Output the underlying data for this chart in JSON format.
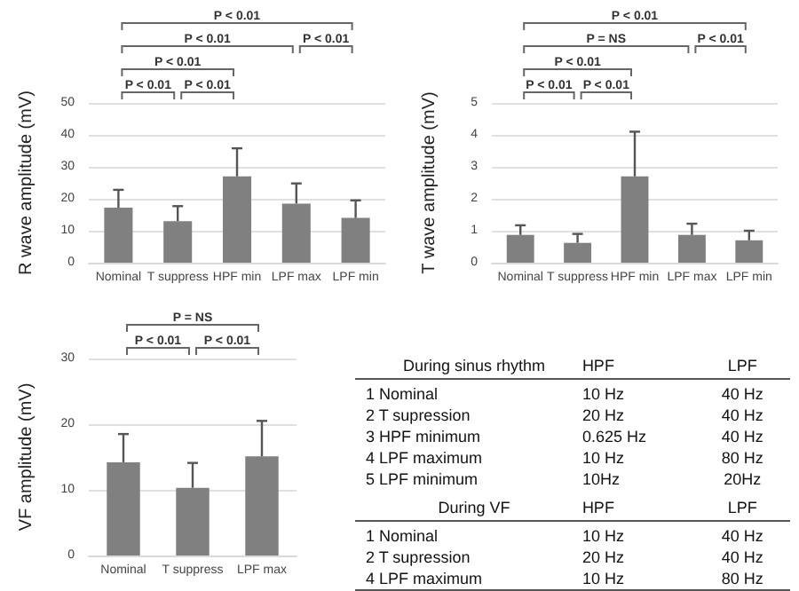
{
  "chart_data": [
    {
      "type": "bar",
      "ylabel": "R wave amplitude (mV)",
      "categories": [
        "Nominal",
        "T suppress",
        "HPF min",
        "LPF max",
        "LPF min"
      ],
      "values": [
        17.2,
        13,
        27,
        18.5,
        14
      ],
      "errors": [
        [
          17.2,
          22.8
        ],
        [
          13,
          17.7
        ],
        [
          27,
          35.8
        ],
        [
          18.5,
          24.8
        ],
        [
          14,
          19.5
        ]
      ],
      "color": "#808080",
      "ylim": [
        0,
        50
      ],
      "yticks": [
        0,
        10,
        20,
        30,
        40,
        50
      ],
      "grid": "y",
      "annotations": [
        "P < 0.01",
        "P < 0.01",
        "P < 0.01",
        "P < 0.01",
        "P < 0.01",
        "P < 0.01"
      ]
    },
    {
      "type": "bar",
      "ylabel": "T wave amplitude (mV)",
      "categories": [
        "Nominal",
        "T suppress",
        "HPF min",
        "LPF max",
        "LPF min"
      ],
      "values": [
        0.87,
        0.62,
        2.7,
        0.87,
        0.7
      ],
      "errors": [
        [
          0.87,
          1.17
        ],
        [
          0.62,
          0.9
        ],
        [
          2.7,
          4.1
        ],
        [
          0.87,
          1.22
        ],
        [
          0.7,
          1.0
        ]
      ],
      "color": "#808080",
      "ylim": [
        0,
        5
      ],
      "yticks": [
        0,
        1,
        2,
        3,
        4,
        5
      ],
      "grid": "y",
      "annotations": [
        "P < 0.01",
        "P = NS",
        "P < 0.01",
        "P < 0.01",
        "P < 0.01",
        "P < 0.01"
      ]
    },
    {
      "type": "bar",
      "ylabel": "VF amplitude (mV)",
      "categories": [
        "Nominal",
        "T suppress",
        "LPF max"
      ],
      "values": [
        14.2,
        10.3,
        15.1
      ],
      "errors": [
        [
          14.2,
          18.5
        ],
        [
          10.3,
          14.1
        ],
        [
          15.1,
          20.5
        ]
      ],
      "color": "#808080",
      "ylim": [
        0,
        30
      ],
      "yticks": [
        0,
        10,
        20,
        30
      ],
      "grid": "y",
      "annotations": [
        "P = NS",
        "P < 0.01",
        "P < 0.01"
      ]
    },
    {
      "type": "other",
      "annotations": [
        "During sinus rhythm",
        "HPF",
        "LPF",
        "1  Nominal",
        "10 Hz",
        "40 Hz",
        "2  T supression",
        "20 Hz",
        "40 Hz",
        "3  HPF minimum",
        "0.625 Hz",
        "40 Hz",
        "4  LPF maximum",
        "10 Hz",
        "80 Hz",
        "5  LPF minimum",
        "10Hz",
        "20Hz",
        "During VF",
        "HPF",
        "LPF",
        "1  Nominal",
        "10 Hz",
        "40 Hz",
        "2  T supression",
        "20 Hz",
        "40 Hz",
        "4  LPF maximum",
        "10 Hz",
        "80 Hz"
      ]
    }
  ]
}
